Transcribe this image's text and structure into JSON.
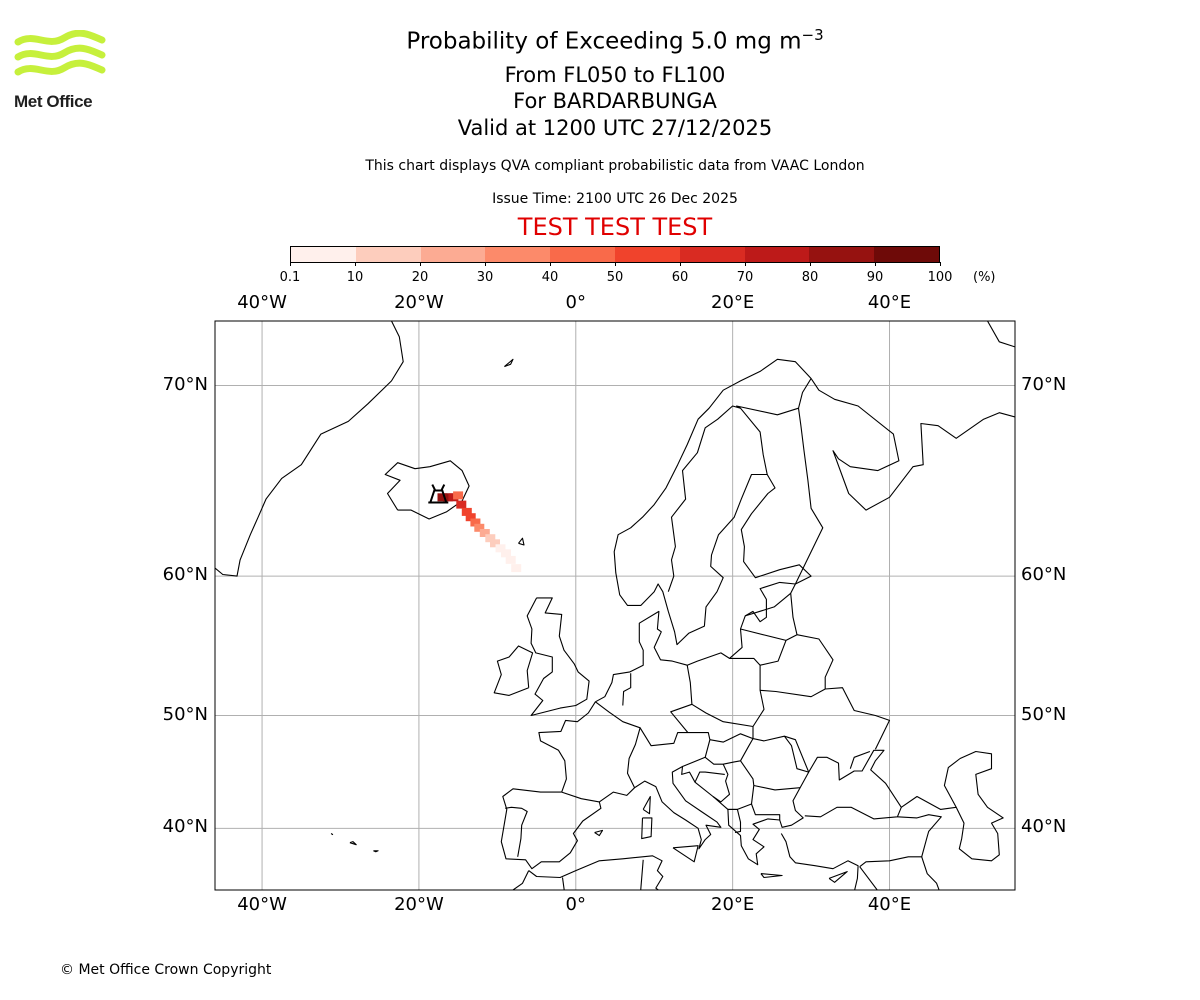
{
  "logo": {
    "text": "Met Office",
    "color": "#c6f03c"
  },
  "title": {
    "main": "Probability of Exceeding 5.0 mg m",
    "main_superscript": "−3",
    "range": "From FL050 to FL100",
    "volcano": "For BARDARBUNGA",
    "valid": "Valid at 1200 UTC 27/12/2025"
  },
  "description": "This chart displays QVA compliant probabilistic data from VAAC London",
  "issue_time": "Issue Time: 2100 UTC 26 Dec 2025",
  "test_banner": {
    "text": "TEST TEST TEST",
    "color": "#e00000"
  },
  "colorbar": {
    "ticks": [
      "0.1",
      "10",
      "20",
      "30",
      "40",
      "50",
      "60",
      "70",
      "80",
      "90",
      "100"
    ],
    "unit": "(%)",
    "colors": [
      "#fff0ec",
      "#fdcdbd",
      "#fcab93",
      "#fc8a6a",
      "#f96a4a",
      "#f0432c",
      "#d92b22",
      "#bd1a19",
      "#961210",
      "#6e0a08"
    ]
  },
  "map": {
    "lon_range": [
      -46,
      56
    ],
    "lat_range": [
      33.8,
      72.6
    ],
    "lon_ticks": [
      "40°W",
      "20°W",
      "0°",
      "20°E",
      "40°E"
    ],
    "lat_ticks": [
      "70°N",
      "60°N",
      "50°N",
      "40°N"
    ],
    "grid": true,
    "projection": "mercator",
    "volcano_location": {
      "name": "BARDARBUNGA",
      "lat": 64.64,
      "lon": -17.53
    },
    "plume": [
      {
        "lat": 64.6,
        "lon": -17.0,
        "p": 88
      },
      {
        "lat": 64.6,
        "lon": -16.3,
        "p": 85
      },
      {
        "lat": 64.6,
        "lon": -15.6,
        "p": 75
      },
      {
        "lat": 64.7,
        "lon": -15.0,
        "p": 45
      },
      {
        "lat": 64.2,
        "lon": -14.6,
        "p": 60
      },
      {
        "lat": 63.8,
        "lon": -13.9,
        "p": 55
      },
      {
        "lat": 63.5,
        "lon": -13.4,
        "p": 50
      },
      {
        "lat": 63.2,
        "lon": -12.8,
        "p": 40
      },
      {
        "lat": 62.9,
        "lon": -12.3,
        "p": 30
      },
      {
        "lat": 62.6,
        "lon": -11.6,
        "p": 22
      },
      {
        "lat": 62.3,
        "lon": -10.9,
        "p": 15
      },
      {
        "lat": 62.0,
        "lon": -10.3,
        "p": 12
      },
      {
        "lat": 61.7,
        "lon": -9.6,
        "p": 8
      },
      {
        "lat": 61.4,
        "lon": -8.9,
        "p": 5
      },
      {
        "lat": 61.0,
        "lon": -8.3,
        "p": 3
      },
      {
        "lat": 60.5,
        "lon": -7.6,
        "p": 1
      }
    ]
  },
  "copyright": "© Met Office Crown Copyright"
}
